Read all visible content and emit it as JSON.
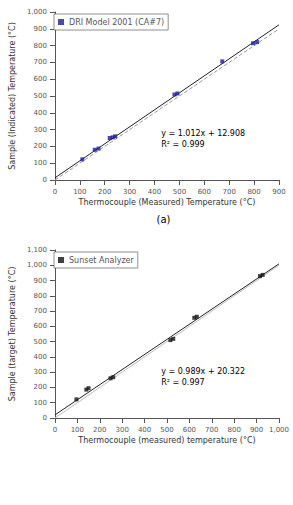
{
  "chart_data": [
    {
      "type": "scatter",
      "subtitle": "(a)",
      "xlabel": "Thermocouple (Measured) Temperature (°C)",
      "ylabel": "Sample (Indicated) Temperature (°C)",
      "series": [
        {
          "name": "DRI Model 2001 (CA#7)",
          "type": "scatter",
          "marker": "square",
          "color": "#1c1c96",
          "x": [
            110,
            160,
            175,
            220,
            232,
            242,
            480,
            492,
            672,
            796,
            812
          ],
          "values": [
            123,
            180,
            187,
            250,
            254,
            260,
            509,
            515,
            706,
            814,
            821
          ]
        },
        {
          "type": "line",
          "line_style": "dashed",
          "color": "#999999",
          "x": [
            0,
            900
          ],
          "values": [
            0,
            900
          ]
        },
        {
          "type": "line",
          "line_style": "solid",
          "color": "#222222",
          "x": [
            0,
            900
          ],
          "values": [
            12.908,
            923.708
          ]
        }
      ],
      "annotations": [
        "y = 1.012x + 12.908",
        "R² = 0.999"
      ],
      "xlim": [
        0,
        900
      ],
      "ylim": [
        0,
        1000
      ],
      "xticks": [
        0,
        100,
        200,
        300,
        400,
        500,
        600,
        700,
        800,
        900
      ],
      "yticks": [
        0,
        100,
        200,
        300,
        400,
        500,
        600,
        700,
        800,
        900,
        1000
      ],
      "grid": false,
      "legend": "upper left"
    },
    {
      "type": "scatter",
      "xlabel": "Thermocouple (measured) temperature (°C)",
      "ylabel": "Sample (target) Temperature (°C)",
      "series": [
        {
          "name": "Sunset Analyzer",
          "type": "scatter",
          "marker": "square",
          "color": "#111111",
          "x": [
            96,
            140,
            150,
            248,
            260,
            515,
            528,
            622,
            633,
            915,
            927
          ],
          "values": [
            122,
            186,
            195,
            260,
            267,
            510,
            518,
            656,
            663,
            929,
            937
          ]
        },
        {
          "type": "line",
          "line_style": "solid",
          "color": "#bbbbbb",
          "x": [
            0,
            1000
          ],
          "values": [
            0,
            1000
          ]
        },
        {
          "type": "line",
          "line_style": "solid",
          "color": "#222222",
          "x": [
            0,
            1000
          ],
          "values": [
            20.322,
            1009.322
          ]
        }
      ],
      "annotations": [
        "y = 0.989x + 20.322",
        "R² = 0.997"
      ],
      "xlim": [
        0,
        1000
      ],
      "ylim": [
        0,
        1100
      ],
      "xticks": [
        0,
        100,
        200,
        300,
        400,
        500,
        600,
        700,
        800,
        900,
        1000
      ],
      "yticks": [
        0,
        100,
        200,
        300,
        400,
        500,
        600,
        700,
        800,
        900,
        1000,
        1100
      ],
      "grid": false,
      "legend": "upper left"
    }
  ]
}
